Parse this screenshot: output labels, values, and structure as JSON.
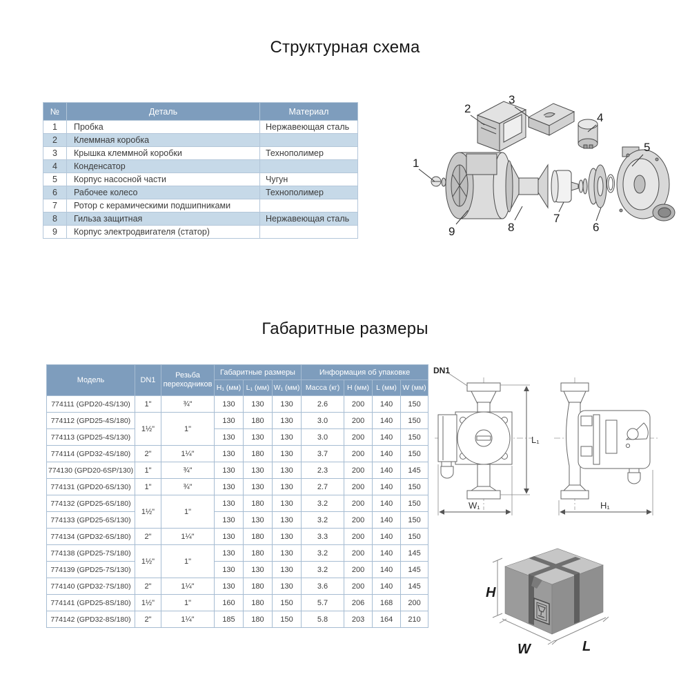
{
  "section1": {
    "title": "Структурная схема"
  },
  "parts_table": {
    "headers": {
      "num": "№",
      "detail": "Деталь",
      "material": "Материал"
    },
    "rows": [
      {
        "num": "1",
        "detail": "Пробка",
        "material": "Нержавеющая сталь"
      },
      {
        "num": "2",
        "detail": "Клеммная коробка",
        "material": ""
      },
      {
        "num": "3",
        "detail": "Крышка клеммной коробки",
        "material": "Технополимер"
      },
      {
        "num": "4",
        "detail": "Конденсатор",
        "material": ""
      },
      {
        "num": "5",
        "detail": "Корпус насосной части",
        "material": "Чугун"
      },
      {
        "num": "6",
        "detail": "Рабочее колесо",
        "material": "Технополимер"
      },
      {
        "num": "7",
        "detail": "Ротор с керамическими подшипниками",
        "material": ""
      },
      {
        "num": "8",
        "detail": "Гильза защитная",
        "material": "Нержавеющая сталь"
      },
      {
        "num": "9",
        "detail": "Корпус электродвигателя (статор)",
        "material": ""
      }
    ]
  },
  "exploded_diagram": {
    "callouts": [
      "1",
      "2",
      "3",
      "4",
      "5",
      "6",
      "7",
      "8",
      "9"
    ]
  },
  "section2": {
    "title": "Габаритные размеры"
  },
  "dimensions_table": {
    "headers": {
      "model": "Модель",
      "dn1": "DN1",
      "thread": "Резьба переходников",
      "group_dimensions": "Габаритные размеры",
      "group_package": "Информация об упаковке",
      "h1": "H₁ (мм)",
      "l1": "L₁ (мм)",
      "w1": "W₁ (мм)",
      "mass": "Масса (кг)",
      "h": "H (мм)",
      "l": "L (мм)",
      "w": "W (мм)"
    },
    "rows": [
      {
        "model": "774111 (GPD20-4S/130)",
        "dn1": "1\"",
        "dn1_span": 1,
        "thread": "¾\"",
        "thread_span": 1,
        "h1": "130",
        "l1": "130",
        "w1": "130",
        "mass": "2.6",
        "h": "200",
        "l": "140",
        "w": "150"
      },
      {
        "model": "774112 (GPD25-4S/180)",
        "dn1": "1½\"",
        "dn1_span": 2,
        "thread": "1\"",
        "thread_span": 2,
        "h1": "130",
        "l1": "180",
        "w1": "130",
        "mass": "3.0",
        "h": "200",
        "l": "140",
        "w": "150"
      },
      {
        "model": "774113 (GPD25-4S/130)",
        "h1": "130",
        "l1": "130",
        "w1": "130",
        "mass": "3.0",
        "h": "200",
        "l": "140",
        "w": "150"
      },
      {
        "model": "774114 (GPD32-4S/180)",
        "dn1": "2\"",
        "dn1_span": 1,
        "thread": "1¼\"",
        "thread_span": 1,
        "h1": "130",
        "l1": "180",
        "w1": "130",
        "mass": "3.7",
        "h": "200",
        "l": "140",
        "w": "150"
      },
      {
        "model": "774130 (GPD20-6SP/130)",
        "dn1": "1\"",
        "dn1_span": 1,
        "thread": "¾\"",
        "thread_span": 1,
        "h1": "130",
        "l1": "130",
        "w1": "130",
        "mass": "2.3",
        "h": "200",
        "l": "140",
        "w": "145"
      },
      {
        "model": "774131 (GPD20-6S/130)",
        "dn1": "1\"",
        "dn1_span": 1,
        "thread": "¾\"",
        "thread_span": 1,
        "h1": "130",
        "l1": "130",
        "w1": "130",
        "mass": "2.7",
        "h": "200",
        "l": "140",
        "w": "150"
      },
      {
        "model": "774132 (GPD25-6S/180)",
        "dn1": "1½\"",
        "dn1_span": 2,
        "thread": "1\"",
        "thread_span": 2,
        "h1": "130",
        "l1": "180",
        "w1": "130",
        "mass": "3.2",
        "h": "200",
        "l": "140",
        "w": "150"
      },
      {
        "model": "774133 (GPD25-6S/130)",
        "h1": "130",
        "l1": "130",
        "w1": "130",
        "mass": "3.2",
        "h": "200",
        "l": "140",
        "w": "150"
      },
      {
        "model": "774134 (GPD32-6S/180)",
        "dn1": "2\"",
        "dn1_span": 1,
        "thread": "1¼\"",
        "thread_span": 1,
        "h1": "130",
        "l1": "180",
        "w1": "130",
        "mass": "3.3",
        "h": "200",
        "l": "140",
        "w": "150"
      },
      {
        "model": "774138 (GPD25-7S/180)",
        "dn1": "1½\"",
        "dn1_span": 2,
        "thread": "1\"",
        "thread_span": 2,
        "h1": "130",
        "l1": "180",
        "w1": "130",
        "mass": "3.2",
        "h": "200",
        "l": "140",
        "w": "145"
      },
      {
        "model": "774139 (GPD25-7S/130)",
        "h1": "130",
        "l1": "130",
        "w1": "130",
        "mass": "3.2",
        "h": "200",
        "l": "140",
        "w": "145"
      },
      {
        "model": "774140 (GPD32-7S/180)",
        "dn1": "2\"",
        "dn1_span": 1,
        "thread": "1¼\"",
        "thread_span": 1,
        "h1": "130",
        "l1": "180",
        "w1": "130",
        "mass": "3.6",
        "h": "200",
        "l": "140",
        "w": "145"
      },
      {
        "model": "774141 (GPD25-8S/180)",
        "dn1": "1½\"",
        "dn1_span": 1,
        "thread": "1\"",
        "thread_span": 1,
        "h1": "160",
        "l1": "180",
        "w1": "150",
        "mass": "5.7",
        "h": "206",
        "l": "168",
        "w": "200"
      },
      {
        "model": "774142 (GPD32-8S/180)",
        "dn1": "2\"",
        "dn1_span": 1,
        "thread": "1¼\"",
        "thread_span": 1,
        "h1": "185",
        "l1": "180",
        "w1": "150",
        "mass": "5.8",
        "h": "203",
        "l": "164",
        "w": "210"
      }
    ]
  },
  "drawings": {
    "dn1": "DN1",
    "l1": "L₁",
    "w1": "W₁",
    "h1": "H₁"
  },
  "package_box": {
    "h": "H",
    "w": "W",
    "l": "L"
  },
  "colors": {
    "header_bg": "#7E9DBD",
    "row_alt": "#C6D9E8",
    "border": "#A6BCD2",
    "text": "#3B3B3B"
  }
}
